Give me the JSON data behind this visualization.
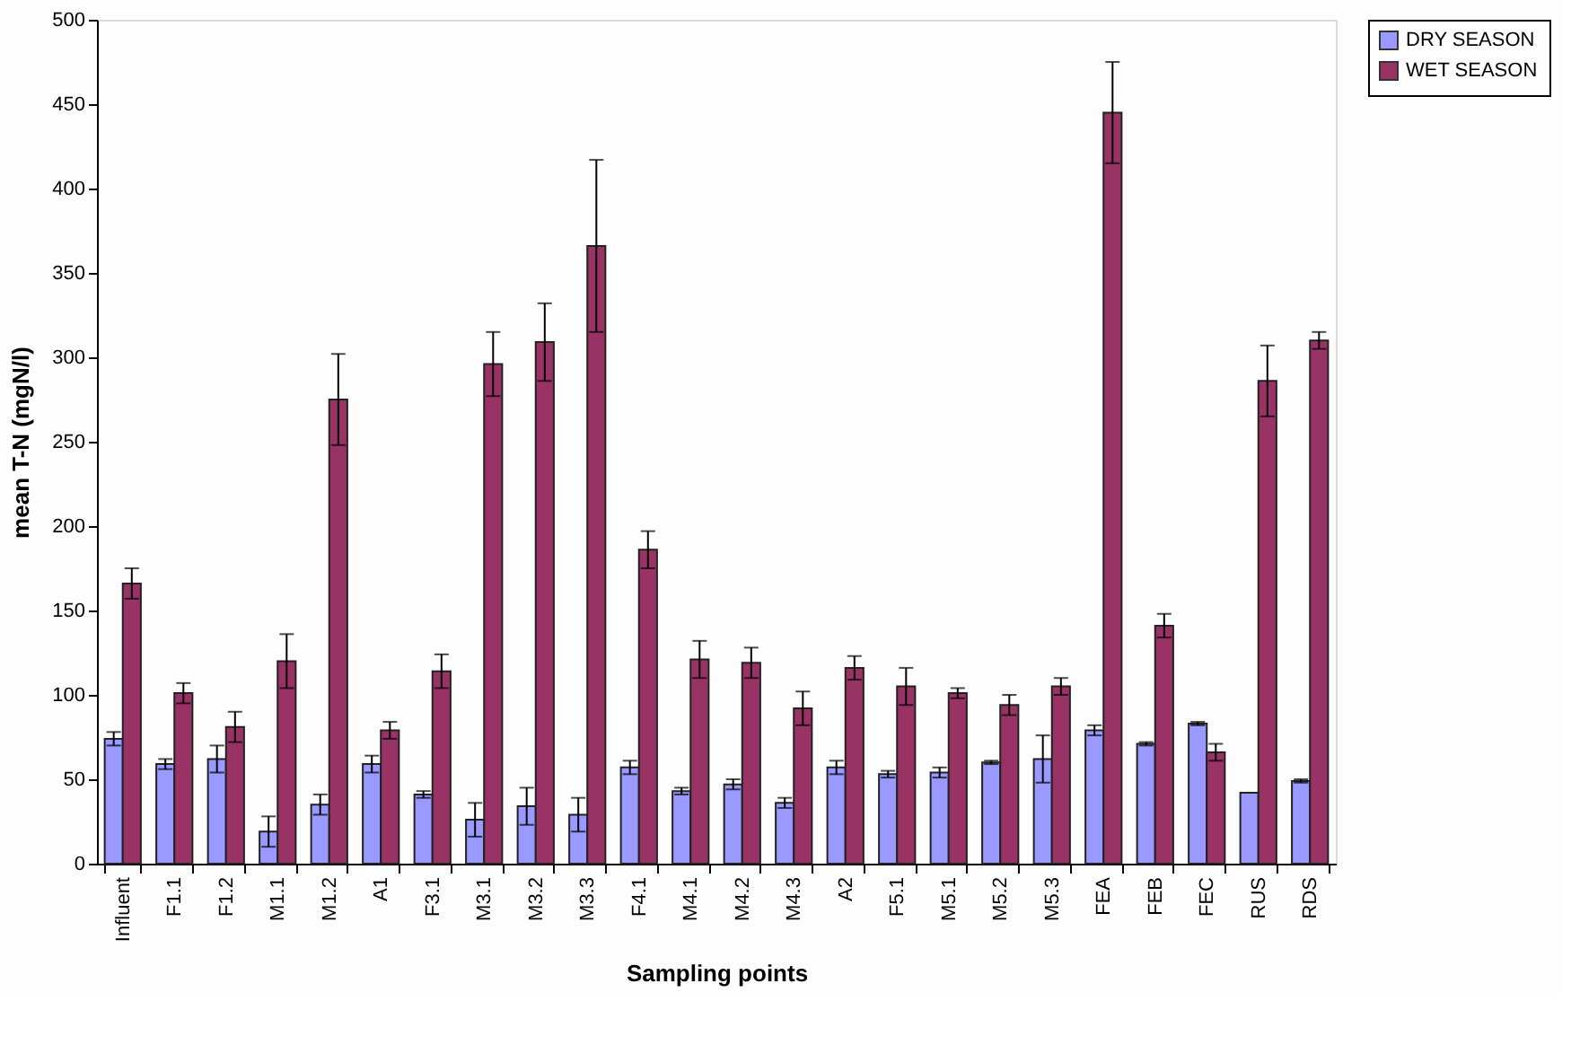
{
  "chart_data": {
    "type": "bar",
    "xlabel": "Sampling points",
    "ylabel": "mean T-N (mgN/l)",
    "categories": [
      "Influent",
      "F1.1",
      "F1.2",
      "M1.1",
      "M1.2",
      "A1",
      "F3.1",
      "M3.1",
      "M3.2",
      "M3.3",
      "F4.1",
      "M4.1",
      "M4.2",
      "M4.3",
      "A2",
      "F5.1",
      "M5.1",
      "M5.2",
      "M5.3",
      "FEA",
      "FEB",
      "FEC",
      "RUS",
      "RDS"
    ],
    "series": [
      {
        "name": "DRY SEASON",
        "color": "#9999ff",
        "values": [
          74,
          59,
          62,
          19,
          35,
          59,
          41,
          26,
          34,
          29,
          57,
          43,
          47,
          36,
          57,
          53,
          54,
          60,
          62,
          79,
          71,
          83,
          42,
          49
        ],
        "errors": [
          4,
          3,
          8,
          9,
          6,
          5,
          2,
          10,
          11,
          10,
          4,
          2,
          3,
          3,
          4,
          2,
          3,
          1,
          14,
          3,
          1,
          1,
          null,
          1
        ]
      },
      {
        "name": "WET SEASON",
        "color": "#993366",
        "values": [
          166,
          101,
          81,
          120,
          275,
          79,
          114,
          296,
          309,
          366,
          186,
          121,
          119,
          92,
          116,
          105,
          101,
          94,
          105,
          445,
          141,
          66,
          286,
          310
        ],
        "errors": [
          9,
          6,
          9,
          16,
          27,
          5,
          10,
          19,
          23,
          51,
          11,
          11,
          9,
          10,
          7,
          11,
          3,
          6,
          5,
          30,
          7,
          5,
          21,
          5
        ]
      }
    ],
    "ylim": [
      0,
      500
    ],
    "yticks": [
      0,
      50,
      100,
      150,
      200,
      250,
      300,
      350,
      400,
      450,
      500
    ],
    "grid": false,
    "legend": "right"
  }
}
